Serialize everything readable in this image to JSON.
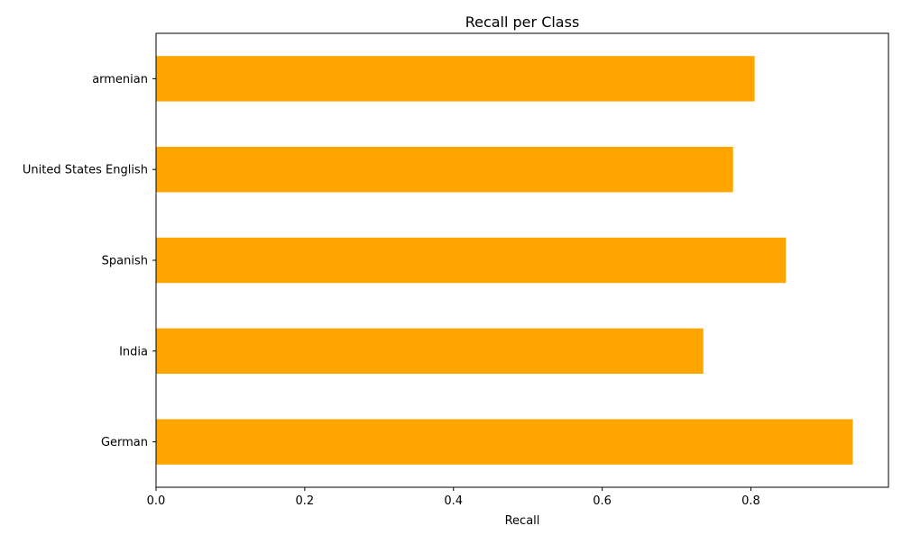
{
  "chart_data": {
    "type": "bar",
    "orientation": "horizontal",
    "title": "Recall per Class",
    "xlabel": "Recall",
    "ylabel": "",
    "categories": [
      "armenian",
      "United States English",
      "Spanish",
      "India",
      "German"
    ],
    "values": [
      0.805,
      0.776,
      0.847,
      0.736,
      0.937
    ],
    "xlim": [
      0,
      0.985
    ],
    "xticks": [
      0.0,
      0.2,
      0.4,
      0.6,
      0.8
    ],
    "xtick_labels": [
      "0.0",
      "0.2",
      "0.4",
      "0.6",
      "0.8"
    ],
    "bar_color": "#FFA500",
    "grid": false,
    "legend": "none"
  }
}
